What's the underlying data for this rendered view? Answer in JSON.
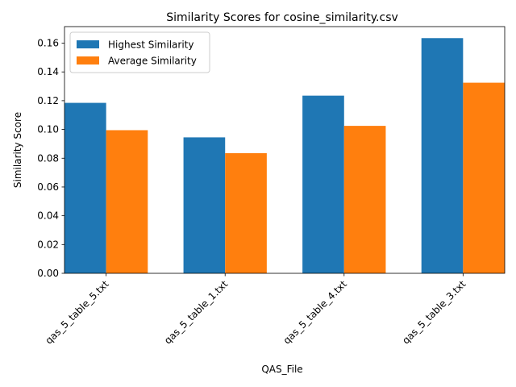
{
  "chart_data": {
    "type": "bar",
    "title": "Similarity Scores for cosine_similarity.csv",
    "xlabel": "QAS_File",
    "ylabel": "Similarity Score",
    "categories": [
      "qas_5_table_5.txt",
      "qas_5_table_1.txt",
      "qas_5_table_4.txt",
      "qas_5_table_3.txt"
    ],
    "series": [
      {
        "name": "Highest Similarity",
        "color": "#1f77b4",
        "values": [
          0.1185,
          0.0945,
          0.1235,
          0.1635
        ]
      },
      {
        "name": "Average Similarity",
        "color": "#ff7f0e",
        "values": [
          0.0995,
          0.0835,
          0.1025,
          0.1325
        ]
      }
    ],
    "ylim": [
      0,
      0.1715
    ],
    "yticks": [
      0.0,
      0.02,
      0.04,
      0.06,
      0.08,
      0.1,
      0.12,
      0.14,
      0.16
    ],
    "ytick_labels": [
      "0.00",
      "0.02",
      "0.04",
      "0.06",
      "0.08",
      "0.10",
      "0.12",
      "0.14",
      "0.16"
    ],
    "grid": false,
    "legend_position": "upper-left"
  }
}
